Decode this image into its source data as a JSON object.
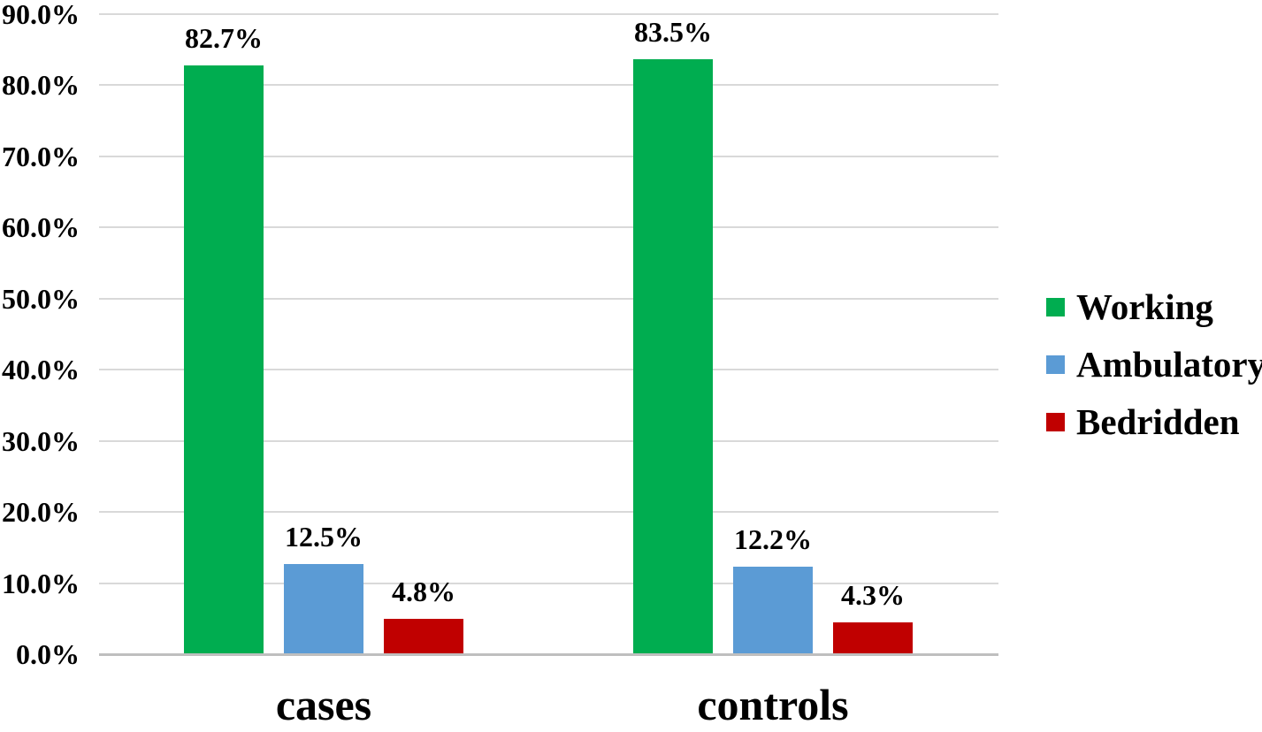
{
  "chart_data": {
    "type": "bar",
    "title": "",
    "categories": [
      "cases",
      "controls"
    ],
    "series": [
      {
        "name": "Working",
        "color": "#00AD50",
        "values": [
          82.7,
          83.5
        ],
        "labels": [
          "82.7%",
          "83.5%"
        ]
      },
      {
        "name": "Ambulatory",
        "color": "#5B9BD5",
        "values": [
          12.5,
          12.2
        ],
        "labels": [
          "12.5%",
          "12.2%"
        ]
      },
      {
        "name": "Bedridden",
        "color": "#C00000",
        "values": [
          4.8,
          4.3
        ],
        "labels": [
          "4.8%",
          "4.3%"
        ]
      }
    ],
    "xlabel": "",
    "ylabel": "",
    "ylim": [
      0,
      90
    ],
    "ytick_step": 10,
    "ytick_labels": [
      "0.0%",
      "10.0%",
      "20.0%",
      "30.0%",
      "40.0%",
      "50.0%",
      "60.0%",
      "70.0%",
      "80.0%",
      "90.0%"
    ],
    "grid": true,
    "legend_position": "right",
    "colors": {
      "gridline": "#D9D9D9",
      "axis_line": "#BFBFBF",
      "text": "#000000",
      "background": "#FFFFFF"
    }
  }
}
